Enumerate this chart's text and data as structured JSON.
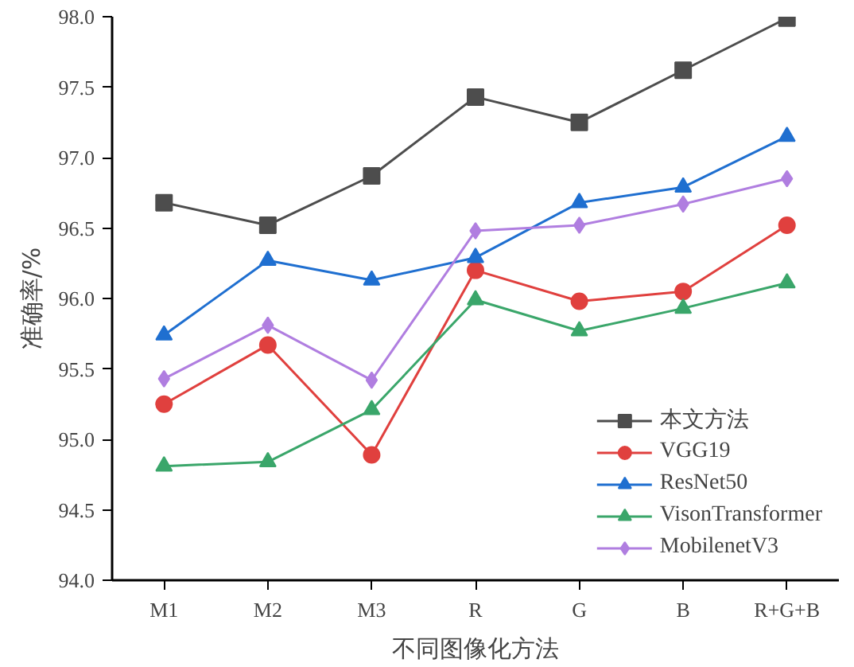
{
  "chart_data": {
    "type": "line",
    "xlabel": "不同图像化方法",
    "ylabel": "准确率/%",
    "categories": [
      "M1",
      "M2",
      "M3",
      "R",
      "G",
      "B",
      "R+G+B"
    ],
    "ylim": [
      94.0,
      98.0
    ],
    "yticks": [
      {
        "value": 94.0,
        "label": "94.0"
      },
      {
        "value": 94.5,
        "label": "94.5"
      },
      {
        "value": 95.0,
        "label": "95.0"
      },
      {
        "value": 95.5,
        "label": "95.5"
      },
      {
        "value": 96.0,
        "label": "96.0"
      },
      {
        "value": 96.5,
        "label": "96.5"
      },
      {
        "value": 97.0,
        "label": "97.0"
      },
      {
        "value": 97.5,
        "label": "97.5"
      },
      {
        "value": 98.0,
        "label": "98.0"
      }
    ],
    "grid": false,
    "legend": "bottom right",
    "line_style": "solid",
    "series": [
      {
        "name": "本文方法",
        "color": "#4d4d4d",
        "marker": "square",
        "values": [
          96.68,
          96.52,
          96.87,
          97.43,
          97.25,
          97.62,
          97.99
        ]
      },
      {
        "name": "VGG19",
        "color": "#e0403e",
        "marker": "circle",
        "values": [
          95.25,
          95.67,
          94.89,
          96.2,
          95.98,
          96.05,
          96.52
        ]
      },
      {
        "name": "ResNet50",
        "color": "#1f6fd0",
        "marker": "triangle",
        "values": [
          95.74,
          96.27,
          96.13,
          96.29,
          96.68,
          96.79,
          97.15
        ]
      },
      {
        "name": "VisonTransformer",
        "color": "#3aa66a",
        "marker": "triangle",
        "values": [
          94.81,
          94.84,
          95.21,
          95.99,
          95.77,
          95.93,
          96.11
        ]
      },
      {
        "name": "MobilenetV3",
        "color": "#b07ee0",
        "marker": "diamond",
        "values": [
          95.43,
          95.81,
          95.42,
          96.48,
          96.52,
          96.67,
          96.85
        ]
      }
    ]
  }
}
